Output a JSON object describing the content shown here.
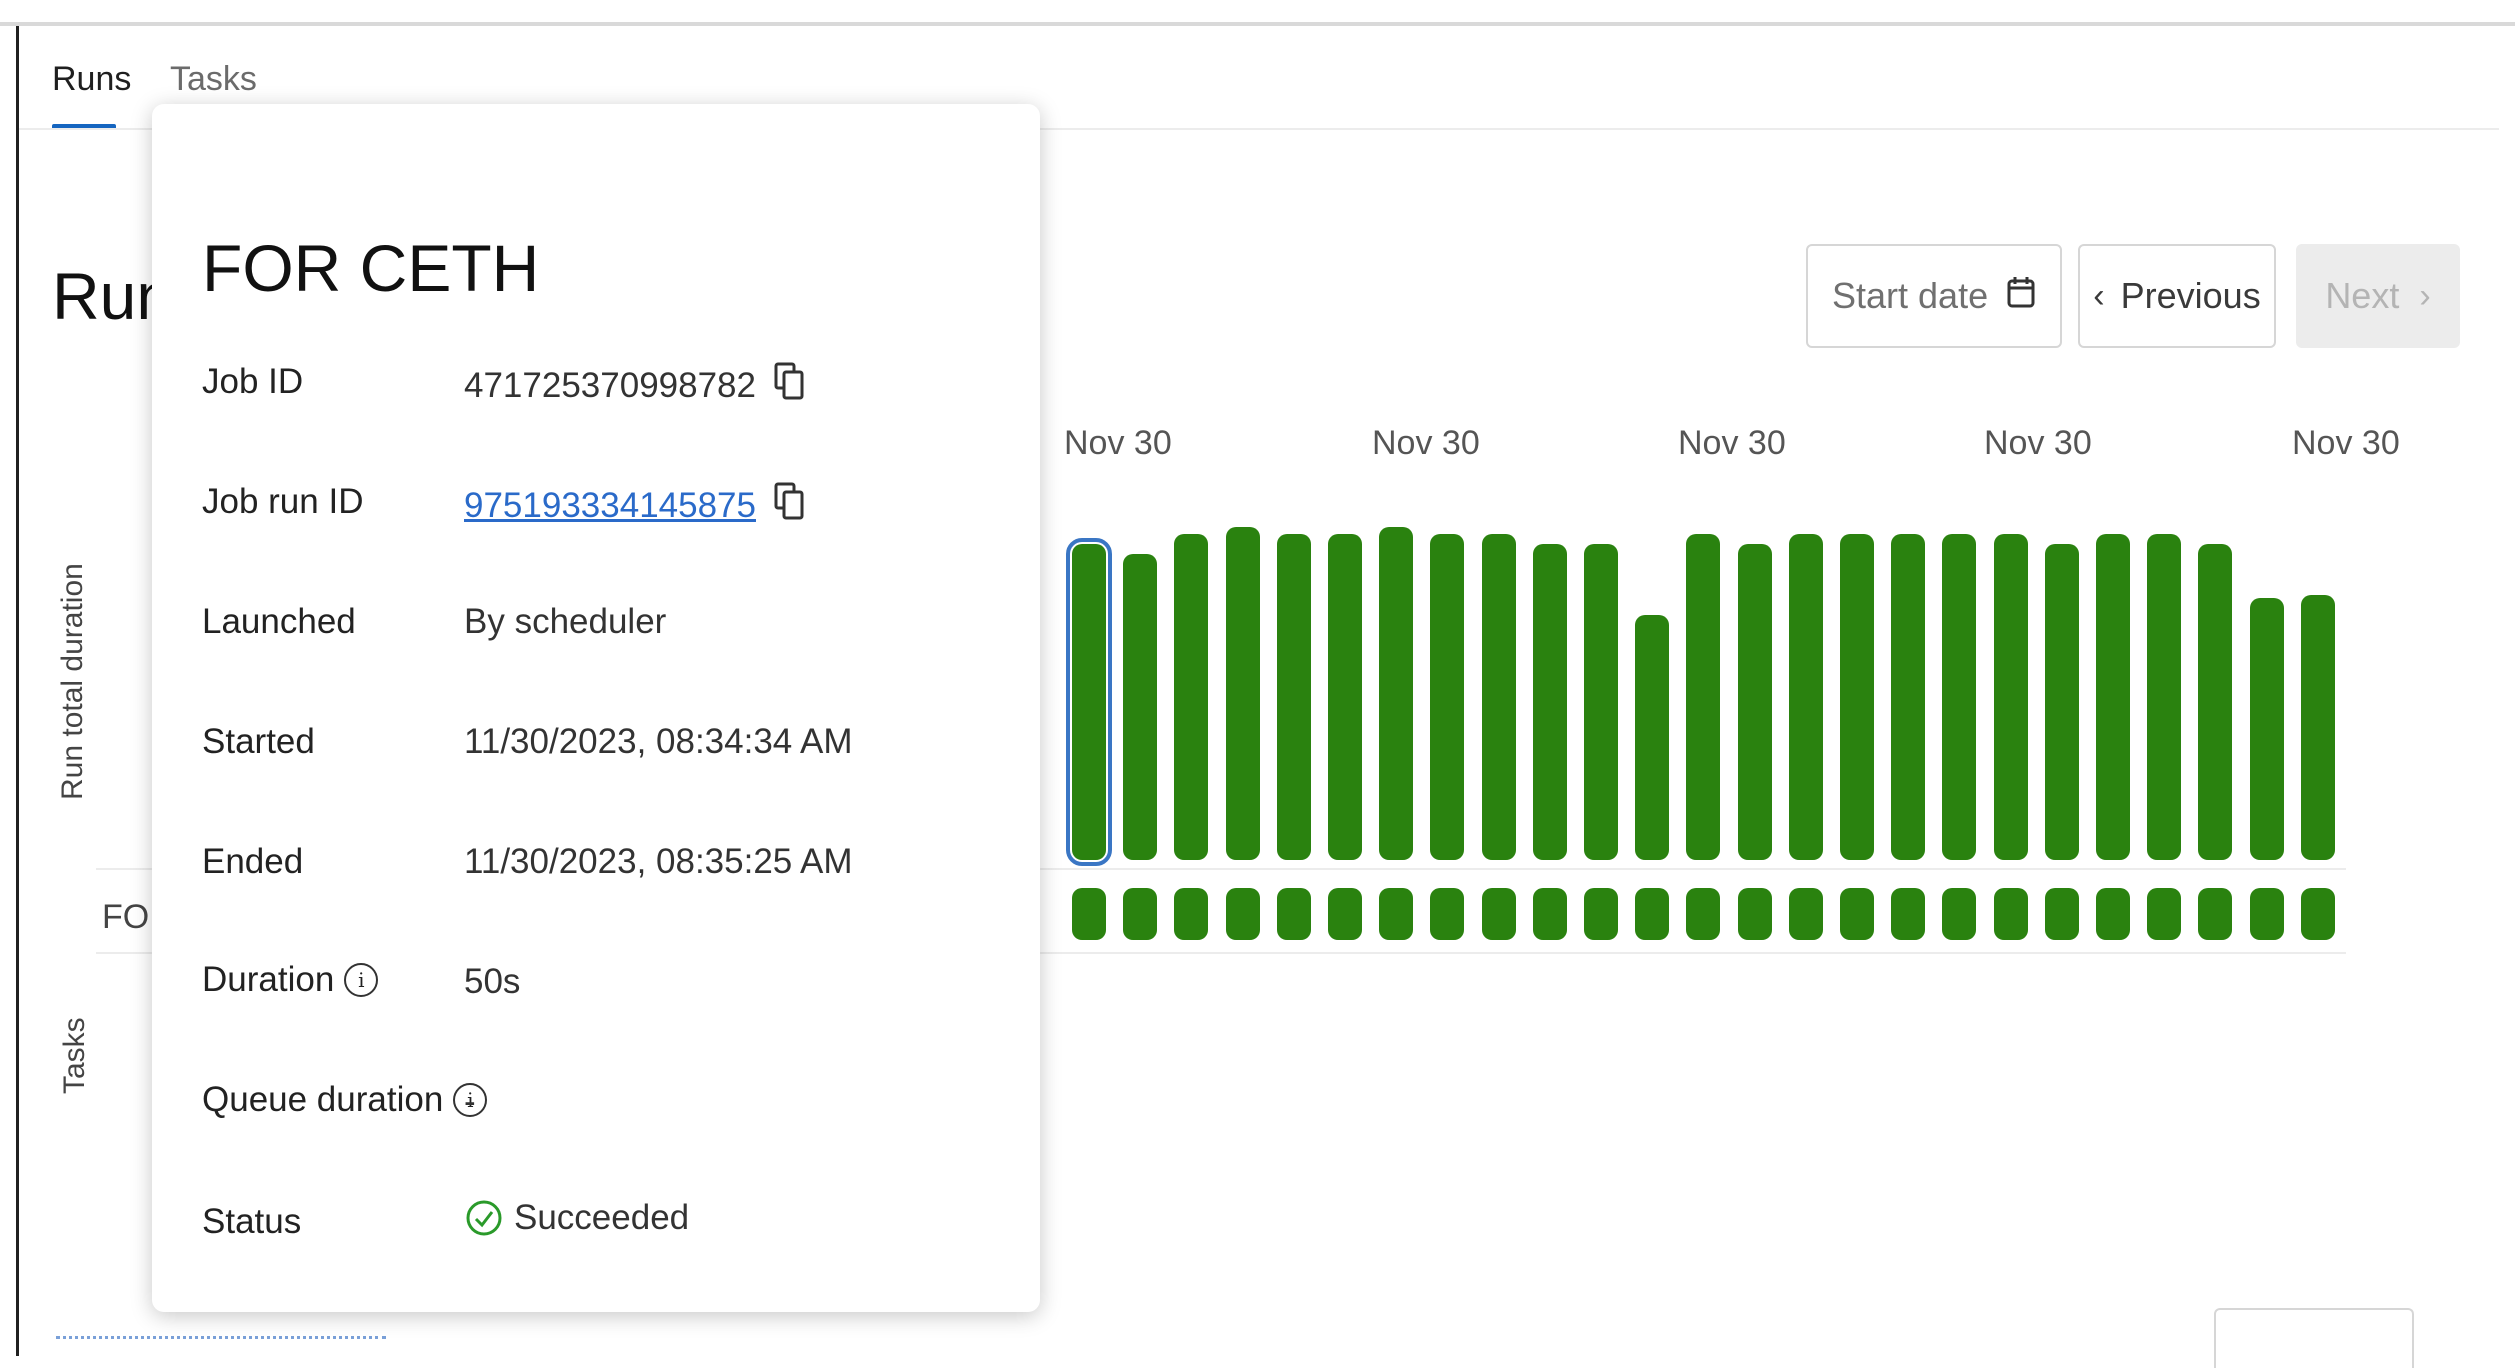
{
  "tabs": [
    {
      "label": "Runs",
      "active": true
    },
    {
      "label": "Tasks",
      "active": false
    }
  ],
  "page_title": "Runs",
  "axis_labels": {
    "run_total_duration": "Run total duration",
    "tasks": "Tasks"
  },
  "task_row_label": "FOR CETH",
  "controls": {
    "start_date_placeholder": "Start date",
    "previous_label": "Previous",
    "next_label": "Next"
  },
  "x_axis_dates": [
    "Nov 30",
    "Nov 30",
    "Nov 30",
    "Nov 30",
    "Nov 30"
  ],
  "run_details": {
    "title": "FOR CETH",
    "fields": [
      {
        "label": "Job ID",
        "value": "471725370998782"
      },
      {
        "label": "Job run ID",
        "value": "975193334145875"
      },
      {
        "label": "Launched",
        "value": "By scheduler"
      },
      {
        "label": "Started",
        "value": "11/30/2023, 08:34:34 AM"
      },
      {
        "label": "Ended",
        "value": "11/30/2023, 08:35:25 AM"
      },
      {
        "label": "Duration",
        "value": "50s"
      },
      {
        "label": "Queue duration",
        "value": "-"
      },
      {
        "label": "Status",
        "value": "Succeeded"
      }
    ]
  },
  "colors": {
    "success": "#2a820f",
    "accent": "#1565c0",
    "link": "#2a6ac9"
  },
  "icons": {
    "copy": "copy-icon",
    "calendar": "calendar-icon",
    "info": "info-icon",
    "status": "check-circle-icon"
  },
  "chart_data": {
    "type": "bar",
    "series": [
      {
        "values": [
          0.94,
          0.91,
          0.97,
          0.99,
          0.97,
          0.97,
          0.99,
          0.97,
          0.97,
          0.94,
          0.94,
          0.73,
          0.97,
          0.94,
          0.97,
          0.97,
          0.97,
          0.97,
          0.97,
          0.94,
          0.97,
          0.97,
          0.94,
          0.78,
          0.79
        ]
      }
    ],
    "task_status": [
      "Succeeded",
      "Succeeded",
      "Succeeded",
      "Succeeded",
      "Succeeded",
      "Succeeded",
      "Succeeded",
      "Succeeded",
      "Succeeded",
      "Succeeded",
      "Succeeded",
      "Succeeded",
      "Succeeded",
      "Succeeded",
      "Succeeded",
      "Succeeded",
      "Succeeded",
      "Succeeded",
      "Succeeded",
      "Succeeded",
      "Succeeded",
      "Succeeded",
      "Succeeded",
      "Succeeded",
      "Succeeded"
    ],
    "selected_index": 0
  }
}
